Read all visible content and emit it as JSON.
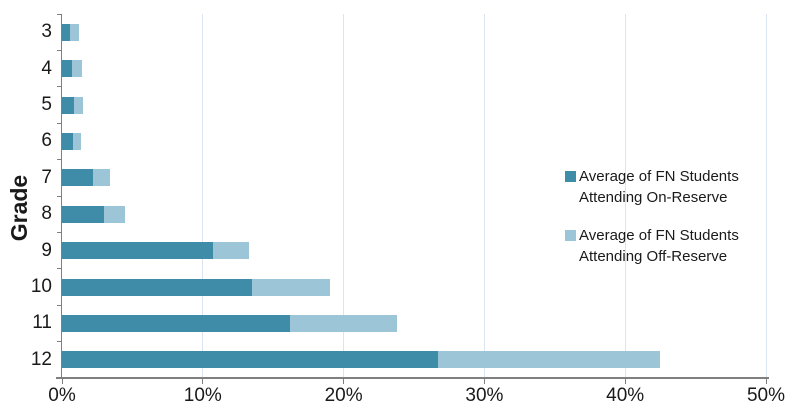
{
  "chart_data": {
    "type": "bar",
    "orientation": "horizontal",
    "stacked": true,
    "title": "",
    "ylabel": "Grade",
    "xlabel": "",
    "xlim": [
      0,
      50
    ],
    "grid": "vertical",
    "categories": [
      "3",
      "4",
      "5",
      "6",
      "7",
      "8",
      "9",
      "10",
      "11",
      "12"
    ],
    "series": [
      {
        "name": "Average of FN Students Attending On-Reserve",
        "color": "#3e8ca8",
        "values": [
          0.6,
          0.7,
          0.85,
          0.8,
          2.2,
          3.0,
          10.7,
          13.5,
          16.2,
          26.7
        ]
      },
      {
        "name": "Average of FN Students Attending Off-Reserve",
        "color": "#9cc6d8",
        "values": [
          0.6,
          0.7,
          0.65,
          0.55,
          1.2,
          1.5,
          2.6,
          5.5,
          7.6,
          15.8
        ]
      }
    ],
    "xtick_labels": [
      "0%",
      "10%",
      "20%",
      "30%",
      "40%",
      "50%"
    ],
    "xtick_values": [
      0,
      10,
      20,
      30,
      40,
      50
    ],
    "legend_position": "inside-right"
  },
  "legend": {
    "entries": [
      {
        "lines": [
          "Average of FN Students",
          "Attending On-Reserve"
        ],
        "color": "#3e8ca8"
      },
      {
        "lines": [
          "Average of FN Students",
          "Attending Off-Reserve"
        ],
        "color": "#9cc6d8"
      }
    ]
  },
  "style": {
    "bar_on_reserve": "#3e8ca8",
    "bar_off_reserve": "#9cc6d8",
    "gridline": "#dbe5f2",
    "axis": "#7f7f7f",
    "text": "#1a1a1a",
    "background": "#ffffff"
  }
}
